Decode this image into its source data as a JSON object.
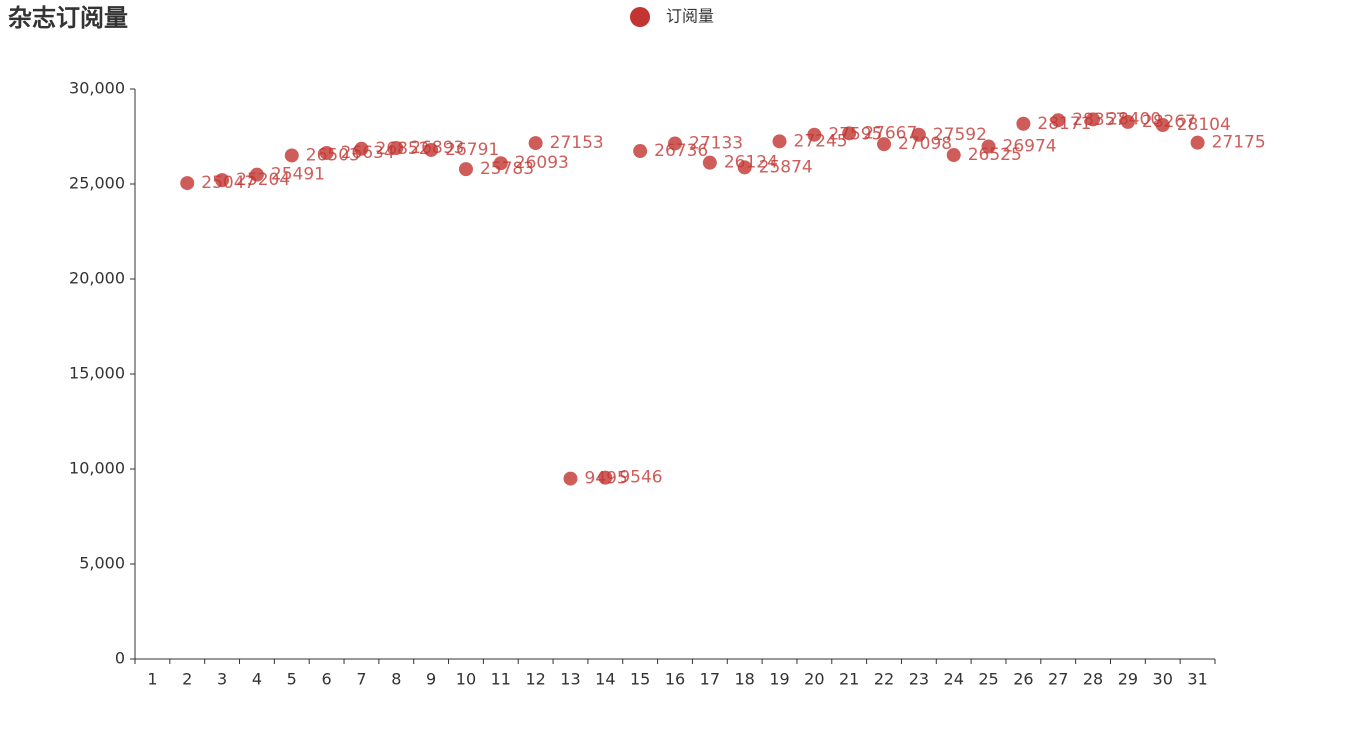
{
  "chart_data": {
    "type": "scatter",
    "title": "杂志订阅量",
    "categories": [
      "1",
      "2",
      "3",
      "4",
      "5",
      "6",
      "7",
      "8",
      "9",
      "10",
      "11",
      "12",
      "13",
      "14",
      "15",
      "16",
      "17",
      "18",
      "19",
      "20",
      "21",
      "22",
      "23",
      "24",
      "25",
      "26",
      "27",
      "28",
      "29",
      "30",
      "31"
    ],
    "series": [
      {
        "name": "订阅量",
        "color": "#c23531",
        "values": [
          null,
          25047,
          25204,
          25491,
          26503,
          26634,
          26852,
          26893,
          26791,
          25783,
          26093,
          27153,
          9495,
          9546,
          26736,
          27133,
          26124,
          25874,
          27245,
          27595,
          27667,
          27098,
          27592,
          26525,
          26974,
          28171,
          28357,
          28400,
          28267,
          28104,
          27175
        ]
      }
    ],
    "ylim": [
      0,
      30000
    ],
    "yticks": [
      0,
      {
        "value": 5000,
        "label": "5,000"
      },
      {
        "value": 10000,
        "label": "10,000"
      },
      {
        "value": 15000,
        "label": "15,000"
      },
      {
        "value": 20000,
        "label": "20,000"
      },
      {
        "value": 25000,
        "label": "25,000"
      },
      {
        "value": 30000,
        "label": "30,000"
      }
    ],
    "legend": "top"
  }
}
